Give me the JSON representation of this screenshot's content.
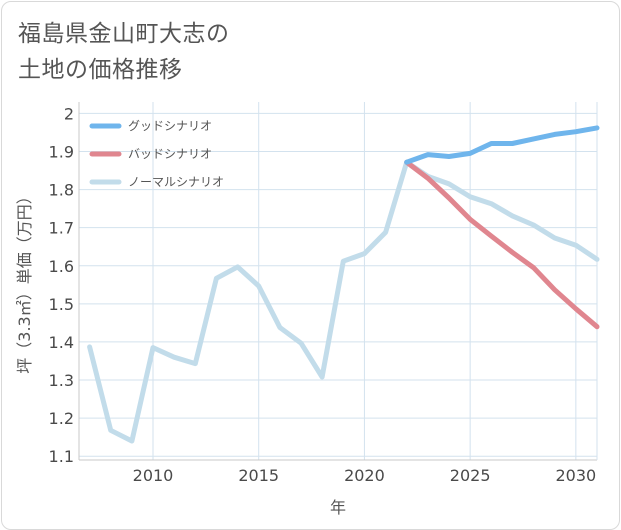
{
  "title_line1": "福島県金山町大志の",
  "title_line2": "土地の価格推移",
  "chart_data": {
    "type": "line",
    "title": "福島県金山町大志の土地の価格推移",
    "xlabel": "年",
    "ylabel": "坪（3.3㎡）単価（万円）",
    "xlim": [
      2006.5,
      2031
    ],
    "ylim": [
      1.09,
      2.03
    ],
    "xticks": [
      2010,
      2015,
      2020,
      2025,
      2030
    ],
    "yticks": [
      1.1,
      1.2,
      1.3,
      1.4,
      1.5,
      1.6,
      1.7,
      1.8,
      1.9,
      2
    ],
    "xtick_labels": [
      "2010",
      "2015",
      "2020",
      "2025",
      "2030"
    ],
    "ytick_labels": [
      "1.1",
      "1.2",
      "1.3",
      "1.4",
      "1.5",
      "1.6",
      "1.7",
      "1.8",
      "1.9",
      "2"
    ],
    "grid": true,
    "legend_position": "top-left",
    "series": [
      {
        "name": "グッドシナリオ",
        "color": "#6fb5ec",
        "x": [
          2022,
          2023,
          2024,
          2025,
          2026,
          2027,
          2028,
          2029,
          2030,
          2031
        ],
        "values": [
          1.872,
          1.892,
          1.887,
          1.895,
          1.921,
          1.921,
          1.933,
          1.945,
          1.952,
          1.962
        ]
      },
      {
        "name": "バッドシナリオ",
        "color": "#e0868f",
        "x": [
          2022,
          2023,
          2024,
          2025,
          2026,
          2027,
          2028,
          2029,
          2030,
          2031
        ],
        "values": [
          1.872,
          1.83,
          1.778,
          1.722,
          1.678,
          1.635,
          1.595,
          1.537,
          1.487,
          1.44
        ]
      },
      {
        "name": "ノーマルシナリオ",
        "color": "#c2dcea",
        "x": [
          2007,
          2008,
          2009,
          2010,
          2011,
          2012,
          2013,
          2014,
          2015,
          2016,
          2017,
          2018,
          2019,
          2020,
          2021,
          2022,
          2023,
          2024,
          2025,
          2026,
          2027,
          2028,
          2029,
          2030,
          2031
        ],
        "values": [
          1.387,
          1.168,
          1.14,
          1.385,
          1.36,
          1.343,
          1.567,
          1.597,
          1.547,
          1.438,
          1.397,
          1.308,
          1.612,
          1.632,
          1.688,
          1.872,
          1.835,
          1.815,
          1.781,
          1.763,
          1.731,
          1.707,
          1.673,
          1.654,
          1.617
        ]
      }
    ]
  }
}
